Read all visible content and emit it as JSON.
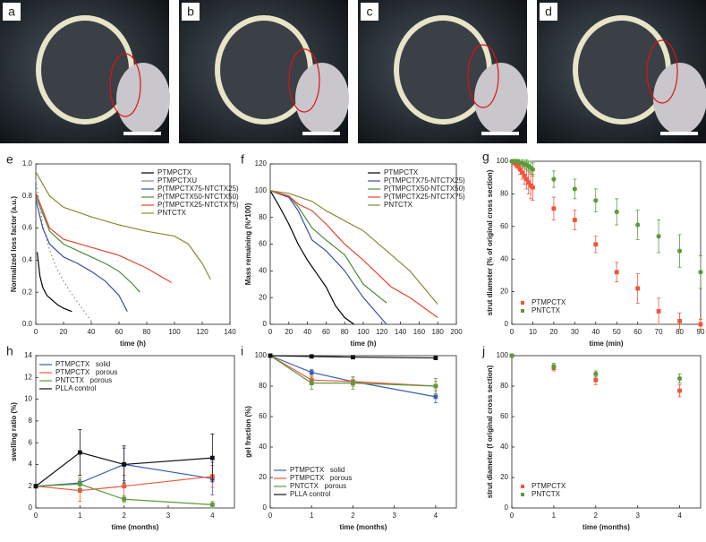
{
  "photos": [
    {
      "label": "a"
    },
    {
      "label": "b"
    },
    {
      "label": "c"
    },
    {
      "label": "d"
    }
  ],
  "chart_data": [
    {
      "type": "line",
      "label": "e",
      "xlabel": "time (h)",
      "ylabel": "Normalized loss factor (a.u.)",
      "xlim": [
        0,
        140
      ],
      "xticks": [
        0,
        20,
        40,
        60,
        80,
        100,
        120,
        140
      ],
      "ylim": [
        0,
        1
      ],
      "yticks": [
        {
          "value": 0,
          "label": "0.0"
        },
        0.2,
        0.4,
        0.6,
        0.8,
        {
          "value": 1,
          "label": "1.0"
        }
      ],
      "legend": "upper right",
      "series": [
        {
          "name": "PTMPCTX",
          "color": "#000000",
          "x": [
            1,
            3,
            5,
            8,
            12,
            16,
            20,
            26
          ],
          "values": [
            0.45,
            0.3,
            0.23,
            0.18,
            0.15,
            0.12,
            0.1,
            0.08
          ]
        },
        {
          "name": "PTMPCTXU",
          "color": "#8a8a8a",
          "dash": true,
          "x": [
            0,
            5,
            10,
            15,
            20,
            25,
            30,
            35,
            40
          ],
          "values": [
            0.9,
            0.62,
            0.46,
            0.35,
            0.27,
            0.2,
            0.14,
            0.08,
            0.02
          ]
        },
        {
          "name": "P(TMPCTX75-NTCTX25)",
          "color": "#3a4fa0",
          "x": [
            0,
            5,
            10,
            20,
            30,
            40,
            50,
            60,
            66
          ],
          "values": [
            0.78,
            0.6,
            0.5,
            0.42,
            0.38,
            0.33,
            0.27,
            0.18,
            0.08
          ]
        },
        {
          "name": "P(TMPCTX50-NTCTX50)",
          "color": "#4c8c3a",
          "x": [
            0,
            10,
            20,
            30,
            40,
            50,
            60,
            70,
            75
          ],
          "values": [
            0.8,
            0.58,
            0.5,
            0.46,
            0.42,
            0.38,
            0.33,
            0.25,
            0.2
          ]
        },
        {
          "name": "P(TMPCTX25-NTCTX75)",
          "color": "#e8442c",
          "x": [
            0,
            10,
            20,
            40,
            60,
            80,
            98
          ],
          "values": [
            0.82,
            0.6,
            0.53,
            0.48,
            0.43,
            0.35,
            0.26
          ]
        },
        {
          "name": "PNTCTX",
          "color": "#8c8a30",
          "x": [
            0,
            10,
            20,
            40,
            60,
            80,
            100,
            110,
            120,
            126
          ],
          "values": [
            0.95,
            0.8,
            0.73,
            0.67,
            0.62,
            0.58,
            0.55,
            0.5,
            0.38,
            0.28
          ]
        }
      ]
    },
    {
      "type": "line",
      "label": "f",
      "xlabel": "time (h)",
      "ylabel": "Mass remaining (%*100)",
      "xlim": [
        0,
        200
      ],
      "xticks": [
        0,
        20,
        40,
        60,
        80,
        100,
        120,
        140,
        160,
        180,
        200
      ],
      "ylim": [
        0,
        120
      ],
      "yticks": [
        0,
        20,
        40,
        60,
        80,
        100,
        120
      ],
      "legend": "upper right",
      "series": [
        {
          "name": "PTMPCTX",
          "color": "#000000",
          "x": [
            0,
            10,
            20,
            30,
            40,
            50,
            60,
            70,
            80,
            90
          ],
          "values": [
            100,
            88,
            75,
            60,
            48,
            38,
            28,
            14,
            5,
            0
          ]
        },
        {
          "name": "P(TMPCTX75-NTCTX25)",
          "color": "#3a4fa0",
          "x": [
            0,
            20,
            30,
            45,
            60,
            80,
            100,
            125
          ],
          "values": [
            100,
            95,
            85,
            63,
            55,
            40,
            20,
            0
          ]
        },
        {
          "name": "P(TMPCTX50-NTCTX50)",
          "color": "#4c8c3a",
          "x": [
            0,
            20,
            30,
            45,
            60,
            80,
            100,
            125
          ],
          "values": [
            100,
            96,
            88,
            72,
            63,
            52,
            30,
            16
          ]
        },
        {
          "name": "P(TMPCTX25-NTCTX75)",
          "color": "#e8442c",
          "x": [
            0,
            20,
            30,
            45,
            60,
            80,
            100,
            130,
            150,
            180
          ],
          "values": [
            100,
            96,
            90,
            85,
            75,
            60,
            48,
            28,
            20,
            5
          ]
        },
        {
          "name": "PNTCTX",
          "color": "#8c8a30",
          "x": [
            0,
            20,
            45,
            60,
            100,
            150,
            180
          ],
          "values": [
            100,
            98,
            92,
            85,
            70,
            40,
            15
          ]
        }
      ]
    },
    {
      "type": "scatter",
      "label": "g",
      "xlabel": "time (min)",
      "ylabel": "strut diameter (% of original cross section)",
      "xlim": [
        0,
        90
      ],
      "xticks": [
        0,
        10,
        20,
        30,
        40,
        50,
        60,
        70,
        80,
        90
      ],
      "ylim": [
        0,
        100
      ],
      "yticks": [
        0,
        20,
        40,
        60,
        80,
        100
      ],
      "legend": "lower left",
      "series": [
        {
          "name": "PTMPCTX",
          "color": "#f0553a",
          "marker": "square",
          "x": [
            1,
            2,
            3,
            4,
            5,
            6,
            7,
            8,
            9,
            10,
            20,
            30,
            40,
            50,
            60,
            70,
            80,
            90
          ],
          "values": [
            99,
            98,
            97,
            95,
            93,
            91,
            89,
            87,
            85,
            84,
            71,
            64,
            49,
            32,
            22,
            8,
            2,
            0
          ],
          "errors": [
            1,
            2,
            2,
            3,
            4,
            5,
            6,
            7,
            8,
            8,
            7,
            6,
            5,
            6,
            9,
            8,
            5,
            3
          ]
        },
        {
          "name": "PNTCTX",
          "color": "#5c9a3c",
          "marker": "circle",
          "x": [
            0,
            1,
            2,
            3,
            4,
            5,
            6,
            7,
            8,
            9,
            10,
            20,
            30,
            40,
            50,
            60,
            70,
            80,
            90
          ],
          "values": [
            100,
            100,
            100,
            100,
            99,
            99,
            98,
            98,
            97,
            96,
            95,
            89,
            83,
            76,
            69,
            61,
            54,
            45,
            32
          ],
          "errors": [
            0,
            1,
            1,
            1,
            1,
            2,
            2,
            3,
            3,
            4,
            4,
            5,
            6,
            7,
            8,
            9,
            10,
            10,
            10
          ]
        }
      ]
    },
    {
      "type": "line",
      "label": "h",
      "xlabel": "time (months)",
      "ylabel": "swelling ratio (%)",
      "xlim": [
        0,
        4.5
      ],
      "xticks": [
        0,
        1,
        2,
        3,
        4
      ],
      "ylim": [
        0,
        14
      ],
      "yticks": [
        0,
        2,
        4,
        6,
        8,
        10,
        12,
        14
      ],
      "legend": "upper left",
      "series": [
        {
          "name": "PTMPCTX   solid",
          "color": "#3a5fb0",
          "marker": "square",
          "x": [
            0,
            1,
            2,
            4
          ],
          "values": [
            2,
            2.3,
            4,
            2.7
          ],
          "errors": [
            0,
            0.5,
            1.5,
            1.5
          ]
        },
        {
          "name": "PTMPCTX   porous",
          "color": "#f0553a",
          "marker": "square",
          "x": [
            0,
            1,
            2,
            4
          ],
          "values": [
            2,
            1.6,
            2,
            2.9
          ],
          "errors": [
            0,
            1,
            1,
            1
          ]
        },
        {
          "name": "PNTCTX   porous",
          "color": "#5c9a3c",
          "marker": "square",
          "x": [
            0,
            1,
            2,
            4
          ],
          "values": [
            2,
            2.2,
            0.8,
            0.3
          ],
          "errors": [
            0,
            0.6,
            0.3,
            0.3
          ]
        },
        {
          "name": "PLLA control",
          "color": "#111111",
          "marker": "square",
          "x": [
            0,
            1,
            2,
            4
          ],
          "values": [
            2,
            5.1,
            4,
            4.6
          ],
          "errors": [
            0,
            2.1,
            1.7,
            2.2
          ]
        }
      ]
    },
    {
      "type": "line",
      "label": "i",
      "xlabel": "time (months)",
      "ylabel": "gel fraction (%)",
      "xlim": [
        0,
        4.5
      ],
      "xticks": [
        0,
        1,
        2,
        3,
        4
      ],
      "ylim": [
        0,
        100
      ],
      "yticks": [
        0,
        20,
        40,
        60,
        80,
        100
      ],
      "legend": "lower left",
      "series": [
        {
          "name": "PTMPCTX   solid",
          "color": "#3a5fb0",
          "marker": "square",
          "x": [
            0,
            1,
            2,
            4
          ],
          "values": [
            100,
            89,
            83,
            73
          ],
          "errors": [
            0,
            2,
            3,
            4
          ]
        },
        {
          "name": "PTMPCTX   porous",
          "color": "#f0553a",
          "marker": "square",
          "x": [
            0,
            1,
            2,
            4
          ],
          "values": [
            100,
            84,
            83,
            80
          ],
          "errors": [
            0,
            3,
            3,
            3
          ]
        },
        {
          "name": "PNTCTX   porous",
          "color": "#5c9a3c",
          "marker": "square",
          "x": [
            0,
            1,
            2,
            4
          ],
          "values": [
            100,
            82,
            82,
            80
          ],
          "errors": [
            0,
            4,
            4,
            5
          ]
        },
        {
          "name": "PLLA control",
          "color": "#111111",
          "marker": "square",
          "x": [
            0,
            1,
            2,
            4
          ],
          "values": [
            100,
            99.5,
            99,
            98.5
          ],
          "errors": [
            0,
            0.5,
            0.5,
            0.5
          ]
        }
      ]
    },
    {
      "type": "scatter",
      "label": "j",
      "xlabel": "time (months)",
      "ylabel": "strut diameter (f original cross section)",
      "xlim": [
        0,
        4.5
      ],
      "xticks": [
        0,
        1,
        2,
        3,
        4
      ],
      "ylim": [
        0,
        100
      ],
      "yticks": [
        0,
        20,
        40,
        60,
        80,
        100
      ],
      "legend": "lower left",
      "series": [
        {
          "name": "PTMPCTX",
          "color": "#f0553a",
          "marker": "square",
          "x": [
            0,
            1,
            2,
            4
          ],
          "values": [
            100,
            92,
            84,
            77
          ],
          "errors": [
            0,
            2,
            3,
            4
          ]
        },
        {
          "name": "PNTCTX",
          "color": "#5c9a3c",
          "marker": "circle",
          "x": [
            0,
            1,
            2,
            4
          ],
          "values": [
            100,
            93,
            88,
            85
          ],
          "errors": [
            0,
            2,
            2,
            3
          ]
        }
      ]
    }
  ]
}
